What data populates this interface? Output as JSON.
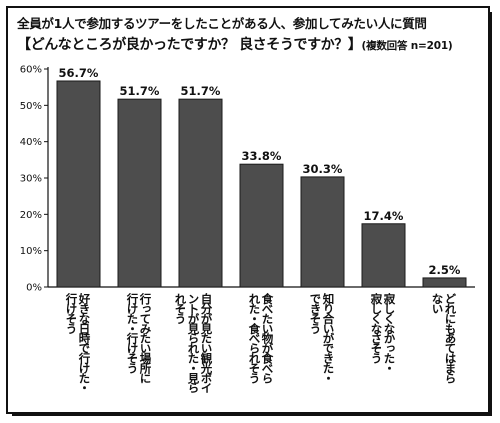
{
  "title_line1": "全員が1人で参加するツアーをしたことがある人、参加してみたい人に質問",
  "title_line2": "【どんなところが良かったですか？ 良さそうですか？】",
  "note": "(複数回答 n=201)",
  "chart_data": {
    "type": "bar",
    "title": "【どんなところが良かったですか？ 良さそうですか？】",
    "note": "(複数回答 n=201)",
    "categories": [
      "好きな日時で行けた・行けそう",
      "行ってみたい場所に行けた・行けそう",
      "自分が見たい観光ポイントが見られた・見られそう",
      "食べたい物が食べられた・食べられそう",
      "知り合いができた・できそう",
      "寂しくなかった・寂しくなさそう",
      "どれにもあてはまらない"
    ],
    "category_lines": [
      [
        "好きな日時で行けた・",
        "行けそう"
      ],
      [
        "行ってみたい場所に",
        "行けた・行けそう"
      ],
      [
        "自分が見たい観光ポイ",
        "ントが見られた・見ら",
        "れそう"
      ],
      [
        "食べたい物が食べら",
        "れた・食べられそう"
      ],
      [
        "知り合いができた・",
        "できそう"
      ],
      [
        "寂しくなかった・",
        "寂しくなさそう"
      ],
      [
        "どれにもあてはまら",
        "ない"
      ]
    ],
    "values": [
      56.7,
      51.7,
      51.7,
      33.8,
      30.3,
      17.4,
      2.5
    ],
    "value_labels": [
      "56.7%",
      "51.7%",
      "51.7%",
      "33.8%",
      "30.3%",
      "17.4%",
      "2.5%"
    ],
    "y_ticks": [
      "0%",
      "10%",
      "20%",
      "30%",
      "40%",
      "50%",
      "60%"
    ],
    "ylim": [
      0,
      60
    ],
    "grid": false,
    "colors": {
      "bar_fill": "#4d4d4d",
      "bar_edge": "#1a1a1a",
      "axis": "#111111",
      "text": "#111111"
    }
  }
}
